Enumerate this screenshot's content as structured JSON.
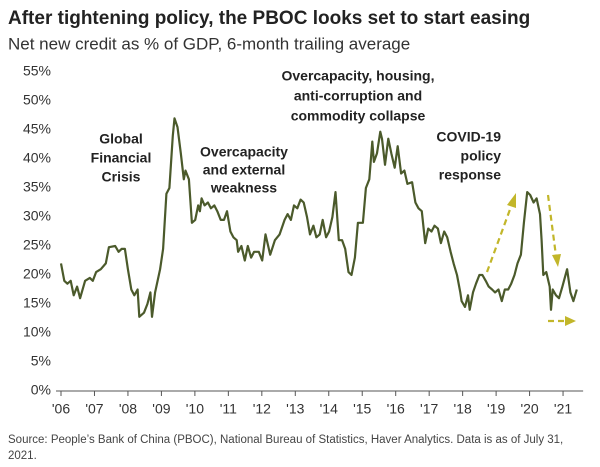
{
  "chart_data": {
    "type": "line",
    "title": "After tightening policy, the PBOC looks set to start easing",
    "subtitle": "Net new credit as % of GDP, 6-month trailing average",
    "source": [
      "Source: People’s Bank of China (PBOC), National Bureau of Statistics, Haver Analytics. Data is as of July 31,",
      "2021."
    ],
    "annotations": [
      {
        "lines": [
          "Global",
          "Financial",
          "Crisis"
        ]
      },
      {
        "lines": [
          "Overcapacity",
          "and external",
          "weakness"
        ]
      },
      {
        "lines": [
          "Overcapacity, housing,",
          "anti-corruption and",
          "commodity collapse"
        ]
      },
      {
        "lines": [
          "COVID-19",
          "policy",
          "response"
        ]
      }
    ],
    "color": "#4b5a2b",
    "xlim": [
      2006,
      2021.6
    ],
    "ylim": [
      0,
      55
    ],
    "xticks": [
      {
        "value": 2006,
        "label": "'06"
      },
      {
        "value": 2007,
        "label": "'07"
      },
      {
        "value": 2008,
        "label": "'08"
      },
      {
        "value": 2009,
        "label": "'09"
      },
      {
        "value": 2010,
        "label": "'10"
      },
      {
        "value": 2011,
        "label": "'11"
      },
      {
        "value": 2012,
        "label": "'12"
      },
      {
        "value": 2013,
        "label": "'13"
      },
      {
        "value": 2014,
        "label": "'14"
      },
      {
        "value": 2015,
        "label": "'15"
      },
      {
        "value": 2016,
        "label": "'16"
      },
      {
        "value": 2017,
        "label": "'17"
      },
      {
        "value": 2018,
        "label": "'18"
      },
      {
        "value": 2019,
        "label": "'19"
      },
      {
        "value": 2020,
        "label": "'20"
      },
      {
        "value": 2021,
        "label": "'21"
      }
    ],
    "yticks": [
      {
        "value": 0,
        "label": "0%"
      },
      {
        "value": 5,
        "label": "5%"
      },
      {
        "value": 10,
        "label": "10%"
      },
      {
        "value": 15,
        "label": "15%"
      },
      {
        "value": 20,
        "label": "20%"
      },
      {
        "value": 25,
        "label": "25%"
      },
      {
        "value": 30,
        "label": "30%"
      },
      {
        "value": 35,
        "label": "35%"
      },
      {
        "value": 40,
        "label": "40%"
      },
      {
        "value": 45,
        "label": "45%"
      },
      {
        "value": 50,
        "label": "50%"
      },
      {
        "value": 55,
        "label": "55%"
      }
    ],
    "x": [
      2006.0,
      2006.1,
      2006.19,
      2006.29,
      2006.38,
      2006.48,
      2006.57,
      2006.72,
      2006.86,
      2006.95,
      2007.05,
      2007.19,
      2007.34,
      2007.43,
      2007.62,
      2007.72,
      2007.81,
      2007.91,
      2008.0,
      2008.1,
      2008.19,
      2008.29,
      2008.34,
      2008.48,
      2008.58,
      2008.67,
      2008.72,
      2008.81,
      2008.96,
      2009.05,
      2009.15,
      2009.24,
      2009.34,
      2009.39,
      2009.48,
      2009.58,
      2009.67,
      2009.72,
      2009.82,
      2009.91,
      2010.01,
      2010.1,
      2010.15,
      2010.2,
      2010.29,
      2010.39,
      2010.48,
      2010.58,
      2010.67,
      2010.77,
      2010.87,
      2010.96,
      2011.06,
      2011.15,
      2011.25,
      2011.29,
      2011.39,
      2011.49,
      2011.58,
      2011.68,
      2011.77,
      2011.91,
      2012.01,
      2012.11,
      2012.25,
      2012.39,
      2012.53,
      2012.68,
      2012.77,
      2012.87,
      2012.96,
      2013.06,
      2013.16,
      2013.25,
      2013.35,
      2013.44,
      2013.54,
      2013.63,
      2013.73,
      2013.82,
      2013.92,
      2014.01,
      2014.11,
      2014.2,
      2014.3,
      2014.4,
      2014.49,
      2014.59,
      2014.68,
      2014.78,
      2014.87,
      2015.02,
      2015.11,
      2015.21,
      2015.3,
      2015.35,
      2015.44,
      2015.54,
      2015.59,
      2015.68,
      2015.78,
      2015.87,
      2015.97,
      2016.06,
      2016.16,
      2016.26,
      2016.35,
      2016.49,
      2016.59,
      2016.68,
      2016.78,
      2016.88,
      2016.97,
      2017.07,
      2017.16,
      2017.26,
      2017.35,
      2017.45,
      2017.54,
      2017.64,
      2017.73,
      2017.83,
      2017.93,
      2017.97,
      2018.07,
      2018.16,
      2018.21,
      2018.31,
      2018.4,
      2018.5,
      2018.59,
      2018.69,
      2018.78,
      2018.88,
      2018.97,
      2019.07,
      2019.17,
      2019.26,
      2019.36,
      2019.45,
      2019.55,
      2019.64,
      2019.74,
      2019.83,
      2019.93,
      2020.02,
      2020.12,
      2020.21,
      2020.31,
      2020.36,
      2020.41,
      2020.5,
      2020.6,
      2020.64,
      2020.69,
      2020.79,
      2020.88,
      2020.98,
      2021.12,
      2021.22,
      2021.31,
      2021.41
    ],
    "values": [
      22,
      19,
      18.5,
      19,
      16.5,
      18,
      16,
      19,
      19.5,
      19,
      20.5,
      21,
      22,
      24.8,
      25,
      24,
      24.5,
      24.5,
      21,
      17.5,
      16.5,
      17.5,
      12.8,
      13.5,
      15,
      17,
      12.8,
      17,
      21,
      24.5,
      34,
      35,
      44,
      47,
      45.5,
      41,
      36.5,
      38,
      36.5,
      29,
      29.5,
      32,
      31,
      33.2,
      32,
      32.5,
      31.5,
      32,
      31,
      29.5,
      29.5,
      31,
      27.5,
      26.5,
      26,
      24,
      25,
      22.5,
      25,
      23,
      24,
      24,
      22.5,
      27,
      23.5,
      26,
      27,
      29.5,
      30.5,
      29.5,
      32,
      31.5,
      33,
      32.5,
      30,
      27,
      28.5,
      26.5,
      27,
      29.5,
      26.5,
      27.5,
      30,
      34.3,
      26,
      26,
      24.5,
      20.5,
      20,
      23,
      29,
      29,
      35,
      36.5,
      43,
      39.5,
      41,
      44.7,
      43.5,
      39,
      43.5,
      41,
      38.5,
      42.2,
      37.5,
      38,
      35.7,
      36,
      32.5,
      31.5,
      31,
      25.5,
      28,
      27.5,
      28.5,
      28,
      25.5,
      27.5,
      26.5,
      24,
      22,
      20,
      17,
      15.5,
      14.5,
      16.5,
      14,
      17,
      18.5,
      20,
      20,
      19,
      18,
      17.5,
      17,
      17.5,
      15.5,
      17.5,
      17.5,
      18.5,
      20,
      22,
      23.5,
      29,
      34.3,
      33.8,
      32.5,
      33.2,
      30.5,
      26,
      20,
      20.5,
      18,
      14,
      17.5,
      16.5,
      16,
      18,
      21,
      17,
      15.5,
      17.5
    ]
  }
}
